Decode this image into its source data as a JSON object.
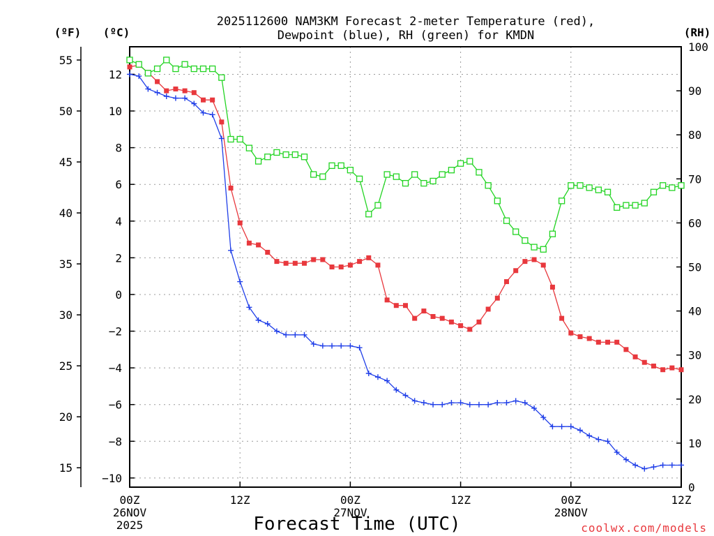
{
  "colors": {
    "temp": "#e8383d",
    "dew": "#1f3ee8",
    "rh": "#22d422",
    "grid": "#9a9a9a",
    "credit": "#e8383d"
  },
  "chart_data": {
    "type": "line",
    "title": [
      "2025112600 NAM3KM Forecast 2-meter Temperature (red),",
      "Dewpoint (blue), RH (green) for KMDN"
    ],
    "xlabel": "Forecast Time (UTC)",
    "credit": "coolwx.com/models",
    "unit_labels": {
      "fahrenheit": "(ºF)",
      "celsius": "(ºC)",
      "rh": "(RH)"
    },
    "x_range_hours": [
      0,
      60
    ],
    "x_ticks": [
      {
        "hour": 0,
        "lines": [
          "00Z",
          "26NOV",
          "2025"
        ]
      },
      {
        "hour": 12,
        "lines": [
          "12Z"
        ]
      },
      {
        "hour": 24,
        "lines": [
          "00Z",
          "27NOV"
        ]
      },
      {
        "hour": 36,
        "lines": [
          "12Z"
        ]
      },
      {
        "hour": 48,
        "lines": [
          "00Z",
          "28NOV"
        ]
      },
      {
        "hour": 60,
        "lines": [
          "12Z"
        ]
      }
    ],
    "celsius_axis": {
      "range": [
        -10.5,
        13.5
      ],
      "ticks": [
        12,
        10,
        8,
        6,
        4,
        2,
        0,
        -2,
        -4,
        -6,
        -8,
        -10
      ],
      "tick_labels": [
        "12",
        "10",
        "8",
        "6",
        "4",
        "2",
        "0",
        "−2",
        "−4",
        "−6",
        "−8",
        "−10"
      ]
    },
    "fahrenheit_axis": {
      "ticks": [
        55,
        50,
        45,
        40,
        35,
        30,
        25,
        20,
        15
      ],
      "tick_labels": [
        "55",
        "50",
        "45",
        "40",
        "35",
        "30",
        "25",
        "20",
        "15"
      ]
    },
    "rh_axis": {
      "range": [
        0,
        100
      ],
      "ticks": [
        100,
        90,
        80,
        70,
        60,
        50,
        40,
        30,
        20,
        10,
        0
      ],
      "tick_labels": [
        "100",
        "90",
        "80",
        "70",
        "60",
        "50",
        "40",
        "30",
        "20",
        "10",
        "0"
      ]
    },
    "x_hours": [
      0,
      1,
      2,
      3,
      4,
      5,
      6,
      7,
      8,
      9,
      10,
      11,
      12,
      13,
      14,
      15,
      16,
      17,
      18,
      19,
      20,
      21,
      22,
      23,
      24,
      25,
      26,
      27,
      28,
      29,
      30,
      31,
      32,
      33,
      34,
      35,
      36,
      37,
      38,
      39,
      40,
      41,
      42,
      43,
      44,
      45,
      46,
      47,
      48,
      49,
      50,
      51,
      52,
      53,
      54,
      55,
      56,
      57,
      58,
      59,
      60
    ],
    "series": [
      {
        "name": "Temperature (°C)",
        "color": "temp",
        "axis": "celsius",
        "marker": "filled-square",
        "values": [
          12.4,
          12.5,
          12.1,
          11.6,
          11.1,
          11.2,
          11.1,
          11.0,
          10.6,
          10.6,
          9.4,
          5.8,
          3.9,
          2.8,
          2.7,
          2.3,
          1.8,
          1.7,
          1.7,
          1.7,
          1.9,
          1.9,
          1.5,
          1.5,
          1.6,
          1.8,
          2.0,
          1.6,
          -0.3,
          -0.6,
          -0.6,
          -1.3,
          -0.9,
          -1.2,
          -1.3,
          -1.5,
          -1.7,
          -1.9,
          -1.5,
          -0.8,
          -0.2,
          0.7,
          1.3,
          1.8,
          1.9,
          1.6,
          0.4,
          -1.3,
          -2.1,
          -2.3,
          -2.4,
          -2.6,
          -2.6,
          -2.6,
          -3.0,
          -3.4,
          -3.7,
          -3.9,
          -4.1,
          -4.0,
          -4.1
        ]
      },
      {
        "name": "Dewpoint (°C)",
        "color": "dew",
        "axis": "celsius",
        "marker": "plus",
        "values": [
          12.0,
          11.9,
          11.2,
          11.0,
          10.8,
          10.7,
          10.7,
          10.4,
          9.9,
          9.8,
          8.5,
          2.4,
          0.7,
          -0.7,
          -1.4,
          -1.6,
          -2.0,
          -2.2,
          -2.2,
          -2.2,
          -2.7,
          -2.8,
          -2.8,
          -2.8,
          -2.8,
          -2.9,
          -4.3,
          -4.5,
          -4.7,
          -5.2,
          -5.5,
          -5.8,
          -5.9,
          -6.0,
          -6.0,
          -5.9,
          -5.9,
          -6.0,
          -6.0,
          -6.0,
          -5.9,
          -5.9,
          -5.8,
          -5.9,
          -6.2,
          -6.7,
          -7.2,
          -7.2,
          -7.2,
          -7.4,
          -7.7,
          -7.9,
          -8.0,
          -8.6,
          -9.0,
          -9.3,
          -9.5,
          -9.4,
          -9.3,
          -9.3,
          -9.3
        ]
      },
      {
        "name": "RH (%)",
        "color": "rh",
        "axis": "rh",
        "marker": "open-square",
        "values": [
          97,
          96,
          94,
          95,
          97,
          95,
          96,
          95,
          95,
          95,
          93,
          79,
          79,
          77,
          74,
          75,
          76,
          75.5,
          75.5,
          75,
          71,
          70.5,
          73,
          73,
          72,
          70,
          62,
          64,
          71,
          70.5,
          69,
          71,
          69,
          69.5,
          71,
          72,
          73.5,
          74,
          71.5,
          68.5,
          65,
          60.5,
          58,
          56,
          54.5,
          54,
          57.5,
          65,
          68.5,
          68.5,
          68,
          67.5,
          67,
          63.5,
          64,
          64,
          64.5,
          67,
          68.5,
          68,
          68.5
        ]
      }
    ]
  }
}
